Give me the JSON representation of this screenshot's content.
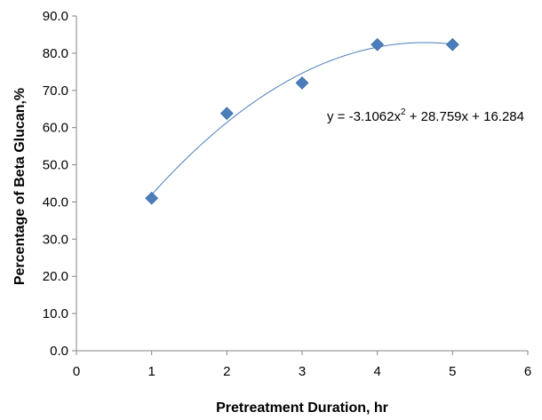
{
  "chart_data": {
    "type": "scatter",
    "xlabel": "Pretreatment Duration, hr",
    "ylabel": "Percentage of Beta Glucan,%",
    "xlim": [
      0,
      6
    ],
    "ylim": [
      0,
      90
    ],
    "x_ticks": [
      0,
      1,
      2,
      3,
      4,
      5,
      6
    ],
    "y_ticks": [
      0,
      10,
      20,
      30,
      40,
      50,
      60,
      70,
      80,
      90
    ],
    "x_tick_labels": [
      "0",
      "1",
      "2",
      "3",
      "4",
      "5",
      "6"
    ],
    "y_tick_labels": [
      "0.0",
      "10.0",
      "20.0",
      "30.0",
      "40.0",
      "50.0",
      "60.0",
      "70.0",
      "80.0",
      "90.0"
    ],
    "grid": false,
    "legend": "none",
    "series": [
      {
        "x": [
          1,
          2,
          3,
          4,
          5
        ],
        "y": [
          41.0,
          63.8,
          72.0,
          82.3,
          82.3
        ],
        "marker": "diamond",
        "color": "#4a7ebb"
      }
    ],
    "trendline": {
      "type": "polynomial",
      "coefficients": [
        -3.1062,
        28.759,
        16.284
      ],
      "x_range": [
        1,
        5
      ],
      "color": "#4a7ebb"
    },
    "equation_label": {
      "prefix": "y = -3.1062x",
      "exponent": "2",
      "suffix": " + 28.759x + 16.284"
    }
  }
}
